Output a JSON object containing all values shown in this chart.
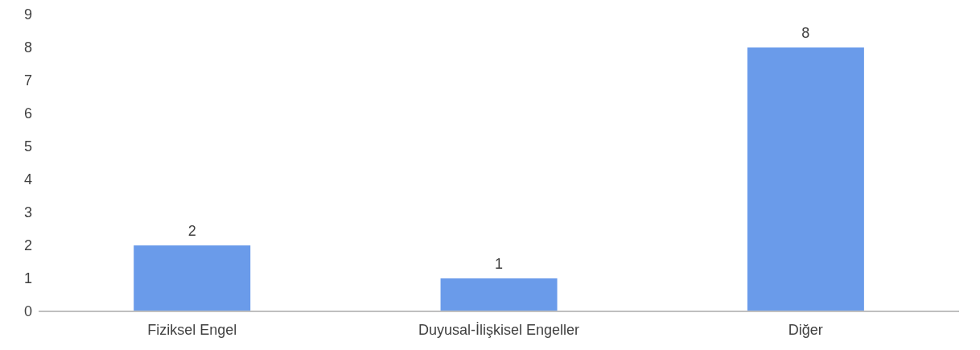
{
  "chart_data": {
    "type": "bar",
    "categories": [
      "Fiziksel Engel",
      "Duyusal-İlişkisel Engeller",
      "Diğer"
    ],
    "values": [
      2,
      1,
      8
    ],
    "color": "#6a9bea",
    "ylim": [
      0,
      9
    ],
    "yticks": [
      0,
      1,
      2,
      3,
      4,
      5,
      6,
      7,
      8,
      9
    ],
    "data_labels": true
  }
}
